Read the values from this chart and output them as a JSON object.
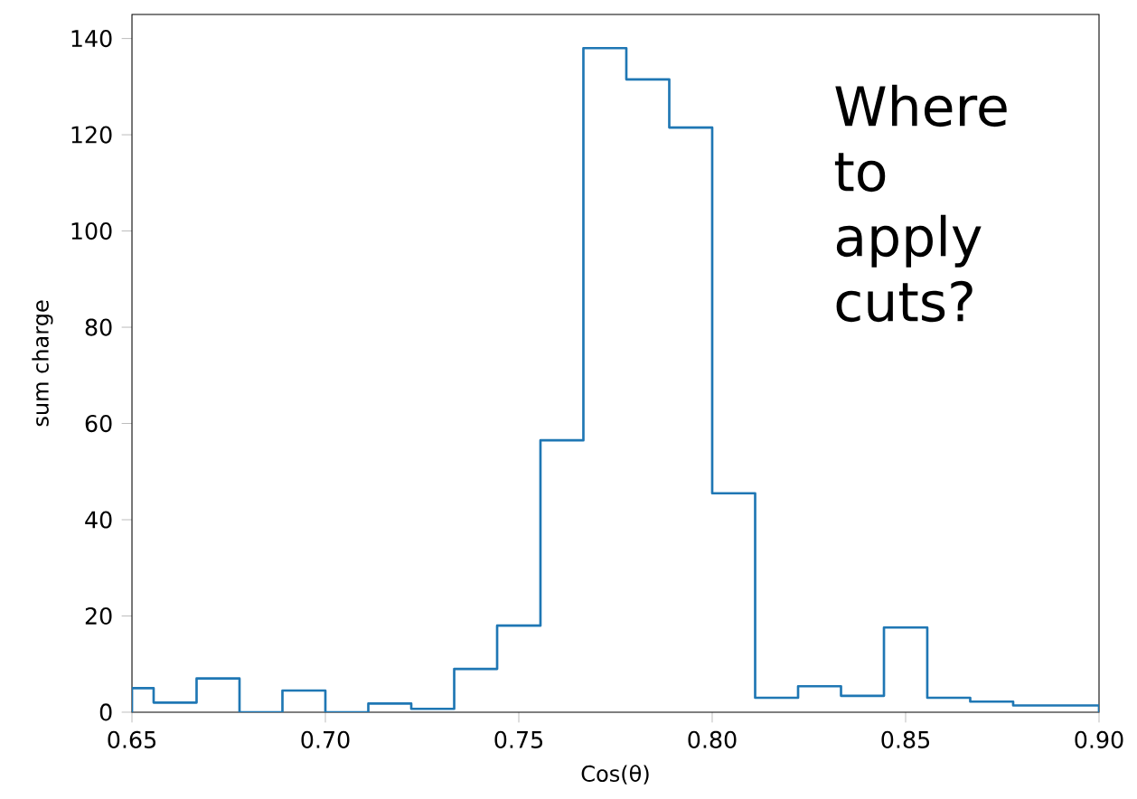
{
  "chart_data": {
    "type": "histogram",
    "xlabel": "Cos(θ)",
    "ylabel": "sum charge",
    "annotations": [
      "Where to apply cuts?"
    ],
    "bins": [
      0.65,
      0.6556,
      0.6667,
      0.6778,
      0.6889,
      0.7,
      0.7111,
      0.7222,
      0.7333,
      0.7444,
      0.7556,
      0.7667,
      0.7778,
      0.7889,
      0.8,
      0.8111,
      0.8222,
      0.8333,
      0.8444,
      0.8556,
      0.8667,
      0.8778,
      0.8889,
      0.9
    ],
    "values": [
      5,
      2,
      7,
      0,
      4.5,
      0,
      1.8,
      0.7,
      9,
      18,
      56.5,
      138,
      131.5,
      121.5,
      45.5,
      3,
      5.4,
      3.4,
      17.6,
      3,
      2.2,
      1.4,
      1.4
    ],
    "color": "#1f77b4",
    "xlim": [
      0.65,
      0.9
    ],
    "ylim": [
      0,
      145
    ],
    "xticks": [
      {
        "value": 0.65,
        "label": "0.65"
      },
      {
        "value": 0.7,
        "label": "0.70"
      },
      {
        "value": 0.75,
        "label": "0.75"
      },
      {
        "value": 0.8,
        "label": "0.80"
      },
      {
        "value": 0.85,
        "label": "0.85"
      },
      {
        "value": 0.9,
        "label": "0.90"
      }
    ],
    "yticks": [
      0,
      20,
      40,
      60,
      80,
      100,
      120,
      140
    ],
    "grid": false
  }
}
